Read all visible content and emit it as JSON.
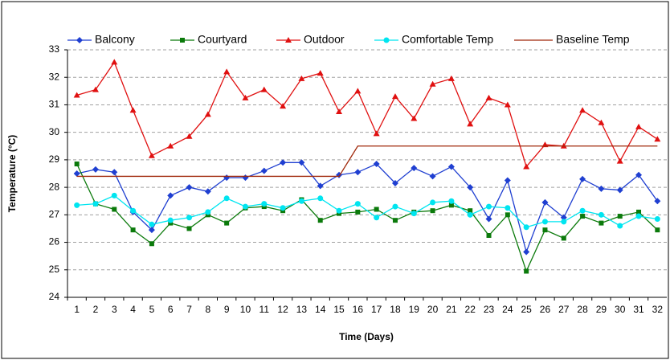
{
  "chart_data": {
    "type": "line",
    "xlabel": "Time (Days)",
    "ylabel": "Temperature (°C)",
    "categories": [
      1,
      2,
      3,
      4,
      5,
      6,
      7,
      8,
      9,
      10,
      11,
      12,
      13,
      14,
      15,
      16,
      17,
      18,
      19,
      20,
      21,
      22,
      23,
      24,
      25,
      26,
      27,
      28,
      29,
      30,
      31,
      32
    ],
    "ylim": [
      24,
      33
    ],
    "yticks": [
      24,
      25,
      26,
      27,
      28,
      29,
      30,
      31,
      32,
      33
    ],
    "grid": true,
    "legend": "top",
    "series": [
      {
        "name": "Balcony",
        "color": "#1f3fd1",
        "marker": "diamond",
        "values": [
          28.5,
          28.65,
          28.55,
          27.1,
          26.45,
          27.7,
          28.0,
          27.85,
          28.35,
          28.35,
          28.6,
          28.9,
          28.9,
          28.05,
          28.45,
          28.55,
          28.85,
          28.15,
          28.7,
          28.4,
          28.75,
          28.0,
          26.85,
          28.25,
          25.65,
          27.45,
          26.9,
          28.3,
          27.95,
          27.9,
          28.45,
          27.5
        ]
      },
      {
        "name": "Courtyard",
        "color": "#0b7a0b",
        "marker": "square",
        "values": [
          28.85,
          27.4,
          27.2,
          26.45,
          25.95,
          26.7,
          26.5,
          27.0,
          26.7,
          27.25,
          27.3,
          27.15,
          27.55,
          26.8,
          27.05,
          27.1,
          27.2,
          26.8,
          27.1,
          27.15,
          27.35,
          27.15,
          26.25,
          27.0,
          24.95,
          26.45,
          26.15,
          26.95,
          26.7,
          26.95,
          27.1,
          26.45
        ]
      },
      {
        "name": "Outdoor",
        "color": "#e01010",
        "marker": "triangle",
        "values": [
          31.35,
          31.55,
          32.55,
          30.8,
          29.15,
          29.5,
          29.85,
          30.65,
          32.2,
          31.25,
          31.55,
          30.95,
          31.95,
          32.15,
          30.75,
          31.5,
          29.95,
          31.3,
          30.5,
          31.75,
          31.95,
          30.3,
          31.25,
          31.0,
          28.75,
          29.55,
          29.5,
          30.8,
          30.35,
          28.95,
          30.2,
          29.75
        ]
      },
      {
        "name": "Comfortable Temp",
        "color": "#00e5f0",
        "marker": "circle",
        "values": [
          27.35,
          27.4,
          27.7,
          27.15,
          26.65,
          26.8,
          26.9,
          27.1,
          27.6,
          27.3,
          27.4,
          27.25,
          27.5,
          27.6,
          27.15,
          27.4,
          26.9,
          27.3,
          27.05,
          27.45,
          27.5,
          27.0,
          27.3,
          27.25,
          26.55,
          26.75,
          26.75,
          27.15,
          27.0,
          26.6,
          26.95,
          26.85
        ]
      },
      {
        "name": "Baseline Temp",
        "color": "#a0280a",
        "marker": "none",
        "values": [
          28.4,
          28.4,
          28.4,
          28.4,
          28.4,
          28.4,
          28.4,
          28.4,
          28.4,
          28.4,
          28.4,
          28.4,
          28.4,
          28.4,
          28.4,
          29.5,
          29.5,
          29.5,
          29.5,
          29.5,
          29.5,
          29.5,
          29.5,
          29.5,
          29.5,
          29.5,
          29.5,
          29.5,
          29.5,
          29.5,
          29.5,
          29.5
        ]
      }
    ]
  }
}
